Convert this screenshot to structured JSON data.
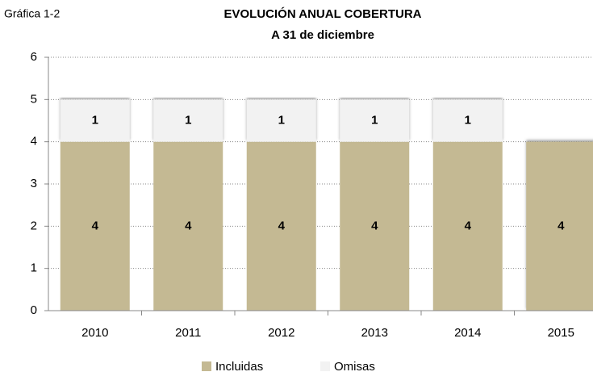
{
  "chart_data": {
    "type": "stacked_bar",
    "label": "Gráfica 1-2",
    "title": "EVOLUCIÓN ANUAL COBERTURA",
    "subtitle": "A 31 de diciembre",
    "categories": [
      "2010",
      "2011",
      "2012",
      "2013",
      "2014",
      "2015"
    ],
    "series": [
      {
        "name": "Incluidas",
        "color": "#c4b993",
        "values": [
          4,
          4,
          4,
          4,
          4,
          4
        ]
      },
      {
        "name": "Omisas",
        "color": "#f2f2f2",
        "values": [
          1,
          1,
          1,
          1,
          1,
          null
        ]
      }
    ],
    "ylim": [
      0,
      6
    ],
    "yticks": [
      0,
      1,
      2,
      3,
      4,
      5,
      6
    ],
    "grid": true,
    "legend": "bottom"
  }
}
